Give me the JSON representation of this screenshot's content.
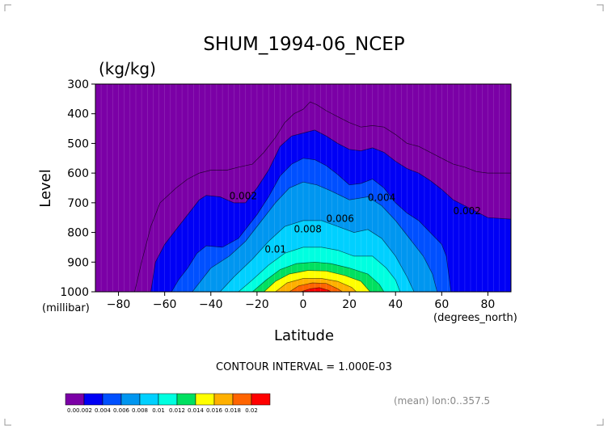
{
  "chart_data": {
    "type": "contour",
    "title": "SHUM_1994-06_NCEP",
    "units": "(kg/kg)",
    "xlabel": "Latitude",
    "ylabel": "Level",
    "x_unit_label": "(degrees_north)",
    "y_unit_label": "(millibar)",
    "xlim": [
      -90,
      90
    ],
    "ylim": [
      1000,
      300
    ],
    "x_ticks": [
      {
        "value": -80,
        "label": "−80"
      },
      {
        "value": -60,
        "label": "−60"
      },
      {
        "value": -40,
        "label": "−40"
      },
      {
        "value": -20,
        "label": "−20"
      },
      {
        "value": 0,
        "label": "0"
      },
      {
        "value": 20,
        "label": "20"
      },
      {
        "value": 40,
        "label": "40"
      },
      {
        "value": 60,
        "label": "60"
      },
      {
        "value": 80,
        "label": "80"
      }
    ],
    "y_ticks": [
      {
        "value": 300,
        "label": "300"
      },
      {
        "value": 400,
        "label": "400"
      },
      {
        "value": 500,
        "label": "500"
      },
      {
        "value": 600,
        "label": "600"
      },
      {
        "value": 700,
        "label": "700"
      },
      {
        "value": 800,
        "label": "800"
      },
      {
        "value": 900,
        "label": "900"
      },
      {
        "value": 1000,
        "label": "1000"
      }
    ],
    "background_color": "#7b00a6",
    "levels": [
      {
        "value": 0.002,
        "color": "#0000f5",
        "profile": [
          [
            -66,
            1000
          ],
          [
            -64,
            900
          ],
          [
            -60,
            840
          ],
          [
            -55,
            790
          ],
          [
            -50,
            740
          ],
          [
            -45,
            690
          ],
          [
            -42,
            675
          ],
          [
            -36,
            680
          ],
          [
            -30,
            700
          ],
          [
            -25,
            700
          ],
          [
            -20,
            650
          ],
          [
            -15,
            590
          ],
          [
            -10,
            510
          ],
          [
            -5,
            475
          ],
          [
            0,
            465
          ],
          [
            5,
            455
          ],
          [
            10,
            475
          ],
          [
            15,
            500
          ],
          [
            20,
            520
          ],
          [
            25,
            525
          ],
          [
            30,
            515
          ],
          [
            35,
            530
          ],
          [
            40,
            560
          ],
          [
            45,
            585
          ],
          [
            50,
            600
          ],
          [
            55,
            625
          ],
          [
            60,
            655
          ],
          [
            65,
            690
          ],
          [
            70,
            710
          ],
          [
            75,
            730
          ],
          [
            80,
            750
          ],
          [
            90,
            755
          ]
        ]
      },
      {
        "value": 0.004,
        "color": "#0050ff",
        "profile": [
          [
            -57,
            1000
          ],
          [
            -54,
            960
          ],
          [
            -50,
            920
          ],
          [
            -46,
            870
          ],
          [
            -42,
            845
          ],
          [
            -35,
            850
          ],
          [
            -28,
            820
          ],
          [
            -20,
            740
          ],
          [
            -15,
            680
          ],
          [
            -10,
            610
          ],
          [
            -5,
            570
          ],
          [
            0,
            550
          ],
          [
            5,
            555
          ],
          [
            10,
            575
          ],
          [
            15,
            605
          ],
          [
            20,
            640
          ],
          [
            25,
            635
          ],
          [
            30,
            620
          ],
          [
            35,
            650
          ],
          [
            40,
            700
          ],
          [
            45,
            735
          ],
          [
            50,
            760
          ],
          [
            55,
            800
          ],
          [
            60,
            840
          ],
          [
            62,
            880
          ],
          [
            64,
            1000
          ]
        ]
      },
      {
        "value": 0.006,
        "color": "#0096f0",
        "profile": [
          [
            -48,
            1000
          ],
          [
            -44,
            960
          ],
          [
            -40,
            920
          ],
          [
            -32,
            880
          ],
          [
            -25,
            830
          ],
          [
            -18,
            760
          ],
          [
            -12,
            700
          ],
          [
            -6,
            650
          ],
          [
            0,
            630
          ],
          [
            6,
            640
          ],
          [
            12,
            660
          ],
          [
            20,
            690
          ],
          [
            28,
            680
          ],
          [
            34,
            710
          ],
          [
            40,
            760
          ],
          [
            46,
            820
          ],
          [
            52,
            880
          ],
          [
            56,
            940
          ],
          [
            58,
            1000
          ]
        ]
      },
      {
        "value": 0.008,
        "color": "#00d0ff",
        "profile": [
          [
            -36,
            1000
          ],
          [
            -30,
            950
          ],
          [
            -22,
            890
          ],
          [
            -15,
            830
          ],
          [
            -8,
            780
          ],
          [
            0,
            760
          ],
          [
            8,
            760
          ],
          [
            15,
            780
          ],
          [
            22,
            800
          ],
          [
            28,
            790
          ],
          [
            34,
            820
          ],
          [
            40,
            880
          ],
          [
            45,
            950
          ],
          [
            48,
            1000
          ]
        ]
      },
      {
        "value": 0.01,
        "color": "#00ffe0",
        "profile": [
          [
            -28,
            1000
          ],
          [
            -22,
            960
          ],
          [
            -15,
            910
          ],
          [
            -8,
            870
          ],
          [
            0,
            850
          ],
          [
            8,
            850
          ],
          [
            15,
            860
          ],
          [
            22,
            880
          ],
          [
            30,
            880
          ],
          [
            36,
            920
          ],
          [
            40,
            960
          ],
          [
            42,
            1000
          ]
        ]
      },
      {
        "value": 0.012,
        "color": "#00e060",
        "profile": [
          [
            -22,
            1000
          ],
          [
            -16,
            960
          ],
          [
            -10,
            925
          ],
          [
            -3,
            905
          ],
          [
            5,
            900
          ],
          [
            12,
            905
          ],
          [
            20,
            920
          ],
          [
            28,
            940
          ],
          [
            33,
            975
          ],
          [
            35,
            1000
          ]
        ]
      },
      {
        "value": 0.014,
        "color": "#ffff00",
        "profile": [
          [
            -17,
            1000
          ],
          [
            -12,
            965
          ],
          [
            -6,
            940
          ],
          [
            2,
            928
          ],
          [
            10,
            930
          ],
          [
            18,
            945
          ],
          [
            25,
            965
          ],
          [
            29,
            1000
          ]
        ]
      },
      {
        "value": 0.016,
        "color": "#ffb000",
        "profile": [
          [
            -12,
            1000
          ],
          [
            -7,
            970
          ],
          [
            0,
            955
          ],
          [
            8,
            955
          ],
          [
            15,
            965
          ],
          [
            21,
            985
          ],
          [
            23,
            1000
          ]
        ]
      },
      {
        "value": 0.018,
        "color": "#ff6400",
        "profile": [
          [
            -6,
            1000
          ],
          [
            -2,
            980
          ],
          [
            4,
            970
          ],
          [
            10,
            972
          ],
          [
            15,
            990
          ],
          [
            17,
            1000
          ]
        ]
      },
      {
        "value": 0.02,
        "color": "#ff0000",
        "profile": [
          [
            -1,
            1000
          ],
          [
            3,
            990
          ],
          [
            7,
            986
          ],
          [
            11,
            995
          ],
          [
            12,
            1000
          ]
        ]
      }
    ],
    "outer_contour_0001": [
      [
        -73,
        1000
      ],
      [
        -70,
        900
      ],
      [
        -66,
        780
      ],
      [
        -62,
        700
      ],
      [
        -55,
        650
      ],
      [
        -50,
        620
      ],
      [
        -45,
        600
      ],
      [
        -40,
        590
      ],
      [
        -33,
        590
      ],
      [
        -28,
        580
      ],
      [
        -22,
        570
      ],
      [
        -17,
        530
      ],
      [
        -12,
        480
      ],
      [
        -8,
        430
      ],
      [
        -4,
        400
      ],
      [
        0,
        385
      ],
      [
        3,
        360
      ],
      [
        6,
        370
      ],
      [
        10,
        390
      ],
      [
        15,
        410
      ],
      [
        20,
        430
      ],
      [
        25,
        445
      ],
      [
        30,
        440
      ],
      [
        35,
        445
      ],
      [
        40,
        470
      ],
      [
        45,
        500
      ],
      [
        50,
        510
      ],
      [
        55,
        530
      ],
      [
        60,
        550
      ],
      [
        65,
        570
      ],
      [
        70,
        580
      ],
      [
        75,
        595
      ],
      [
        80,
        600
      ],
      [
        90,
        600
      ]
    ],
    "contour_labels": [
      {
        "text": "0.002",
        "lat": -26,
        "level": 688
      },
      {
        "text": "0.004",
        "lat": 34,
        "level": 693
      },
      {
        "text": "0.006",
        "lat": 16,
        "level": 765
      },
      {
        "text": "0.008",
        "lat": 2,
        "level": 800
      },
      {
        "text": "0.01",
        "lat": -12,
        "level": 868
      },
      {
        "text": "0.002",
        "lat": 71,
        "level": 738
      }
    ],
    "colorbar": {
      "labels": [
        "0.0",
        "0.002",
        "0.004",
        "0.006",
        "0.008",
        "0.01",
        "0.012",
        "0.014",
        "0.016",
        "0.018",
        "0.02"
      ],
      "colors": [
        "#7b00a6",
        "#0000f5",
        "#0050ff",
        "#0096f0",
        "#00d0ff",
        "#00ffe0",
        "#00e060",
        "#ffff00",
        "#ffb000",
        "#ff6400",
        "#ff0000"
      ]
    },
    "contour_interval_text": "CONTOUR INTERVAL = 1.000E-03",
    "mean_text": "(mean) lon:0..357.5"
  }
}
